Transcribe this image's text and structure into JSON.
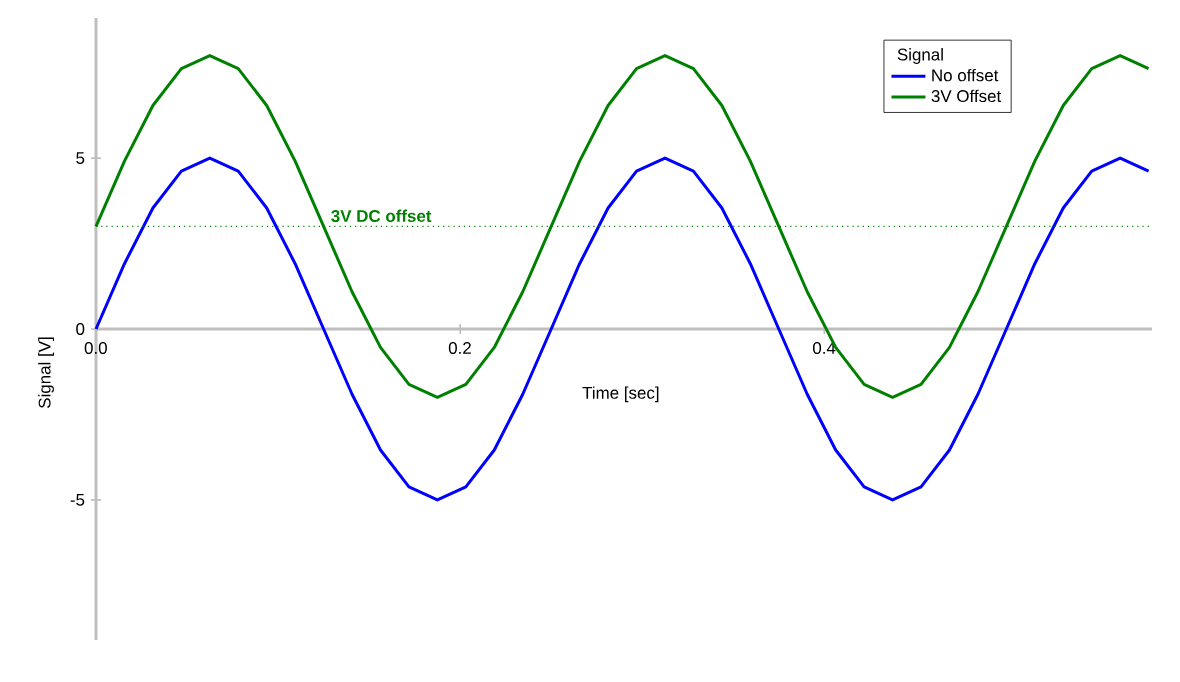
{
  "chart_data": {
    "type": "line",
    "xlabel": "Time [sec]",
    "ylabel": "Signal [V]",
    "legend_title": "Signal",
    "legend": "top right",
    "marker": "none",
    "line_style": "solid",
    "grid": false,
    "x": [
      0,
      0.015625,
      0.03125,
      0.046875,
      0.0625,
      0.078125,
      0.09375,
      0.109375,
      0.125,
      0.140625,
      0.15625,
      0.171875,
      0.1875,
      0.203125,
      0.21875,
      0.234375,
      0.25,
      0.265625,
      0.28125,
      0.296875,
      0.3125,
      0.328125,
      0.34375,
      0.359375,
      0.375,
      0.390625,
      0.40625,
      0.421875,
      0.4375,
      0.453125,
      0.46875,
      0.484375,
      0.5,
      0.515625,
      0.53125,
      0.546875,
      0.5625,
      0.578125
    ],
    "series": [
      {
        "name": "No offset",
        "color": "#0000ff",
        "values": [
          0,
          1.91,
          3.54,
          4.62,
          5,
          4.62,
          3.54,
          1.91,
          0,
          -1.91,
          -3.54,
          -4.62,
          -5,
          -4.62,
          -3.54,
          -1.91,
          0,
          1.91,
          3.54,
          4.62,
          5,
          4.62,
          3.54,
          1.91,
          0,
          -1.91,
          -3.54,
          -4.62,
          -5,
          -4.62,
          -3.54,
          -1.91,
          0,
          1.91,
          3.54,
          4.62,
          5,
          4.62
        ]
      },
      {
        "name": "3V Offset",
        "color": "#008000",
        "values": [
          3,
          4.91,
          6.54,
          7.62,
          8,
          7.62,
          6.54,
          4.91,
          3,
          1.09,
          -0.54,
          -1.62,
          -2,
          -1.62,
          -0.54,
          1.09,
          3,
          4.91,
          6.54,
          7.62,
          8,
          7.62,
          6.54,
          4.91,
          3,
          1.09,
          -0.54,
          -1.62,
          -2,
          -1.62,
          -0.54,
          1.09,
          3,
          4.91,
          6.54,
          7.62,
          8,
          7.62
        ]
      }
    ],
    "ref_lines": [
      {
        "axis": "y",
        "value": 3,
        "label": "3V DC offset",
        "color": "#008000",
        "line_style": "dotted"
      }
    ],
    "xlim": [
      0,
      0.58
    ],
    "ylim": [
      -9.1,
      9.1
    ],
    "xticks": [
      {
        "value": 0,
        "label": "0.0"
      },
      0.2,
      0.4
    ],
    "yticks": [
      -5,
      0,
      5
    ]
  }
}
